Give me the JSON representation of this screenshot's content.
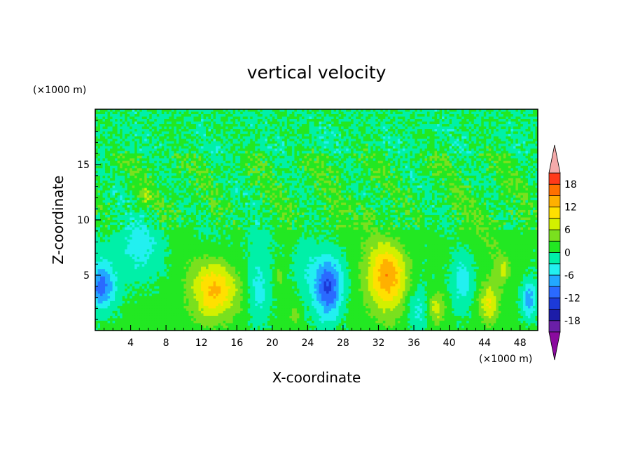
{
  "chart_data": {
    "type": "heatmap",
    "title": "vertical velocity",
    "xlabel": "X-coordinate",
    "ylabel": "Z-coordinate",
    "x_unit": "(×1000 m)",
    "y_unit": "(×1000 m)",
    "xlim": [
      0,
      50
    ],
    "ylim": [
      0,
      20
    ],
    "x_ticks": [
      4,
      8,
      12,
      16,
      20,
      24,
      28,
      32,
      36,
      40,
      44,
      48
    ],
    "y_ticks": [
      5,
      10,
      15
    ],
    "colorbar": {
      "levels": [
        -21,
        -18,
        -15,
        -12,
        -9,
        -6,
        -3,
        0,
        3,
        6,
        9,
        12,
        15,
        18,
        21
      ],
      "labels": [
        "18",
        "12",
        "6",
        "0",
        "-6",
        "-12",
        "-18"
      ],
      "label_values": [
        18,
        12,
        6,
        0,
        -6,
        -12,
        -18
      ],
      "colors": [
        "#6a1fa8",
        "#1c1ca8",
        "#1c3ad8",
        "#2a6aff",
        "#22a8ff",
        "#22f0f0",
        "#00f0a8",
        "#22e822",
        "#7ae01e",
        "#d2f000",
        "#ffe000",
        "#ffb000",
        "#ff7000",
        "#ff3a1a",
        "#e01010"
      ],
      "under_color": "#8a0a9e",
      "over_color": "#f4aaaa"
    },
    "features": [
      {
        "x": 13.5,
        "z": 3.7,
        "value": 12,
        "sx": 2.6,
        "sz": 2.6
      },
      {
        "x": 33.0,
        "z": 5.0,
        "value": 14,
        "sx": 2.3,
        "sz": 3.2
      },
      {
        "x": 38.5,
        "z": 2.0,
        "value": 7,
        "sx": 1.0,
        "sz": 1.4
      },
      {
        "x": 44.5,
        "z": 2.5,
        "value": 8,
        "sx": 1.1,
        "sz": 1.8
      },
      {
        "x": 46.0,
        "z": 5.5,
        "value": 5,
        "sx": 0.8,
        "sz": 1.3
      },
      {
        "x": 22.5,
        "z": 1.4,
        "value": 4,
        "sx": 0.6,
        "sz": 0.9
      },
      {
        "x": 20.8,
        "z": 4.8,
        "value": 3,
        "sx": 0.6,
        "sz": 1.0
      },
      {
        "x": 5.7,
        "z": 12.2,
        "value": 4,
        "sx": 0.6,
        "sz": 0.8
      },
      {
        "x": 31.0,
        "z": 10.3,
        "value": 3,
        "sx": 0.8,
        "sz": 1.2
      },
      {
        "x": 26.3,
        "z": 4.0,
        "value": -14,
        "sx": 1.6,
        "sz": 2.8
      },
      {
        "x": 0.7,
        "z": 4.0,
        "value": -11,
        "sx": 1.5,
        "sz": 2.0
      },
      {
        "x": 49.0,
        "z": 2.8,
        "value": -9,
        "sx": 0.8,
        "sz": 1.6
      },
      {
        "x": 5.0,
        "z": 7.5,
        "value": -6,
        "sx": 3.0,
        "sz": 3.0
      },
      {
        "x": 18.5,
        "z": 3.8,
        "value": -5,
        "sx": 1.2,
        "sz": 3.2
      },
      {
        "x": 36.5,
        "z": 2.0,
        "value": -5,
        "sx": 1.3,
        "sz": 2.0
      },
      {
        "x": 41.5,
        "z": 4.5,
        "value": -6,
        "sx": 1.3,
        "sz": 2.5
      },
      {
        "x": 23.8,
        "z": 6.5,
        "value": -4,
        "sx": 1.5,
        "sz": 3.0
      }
    ]
  }
}
